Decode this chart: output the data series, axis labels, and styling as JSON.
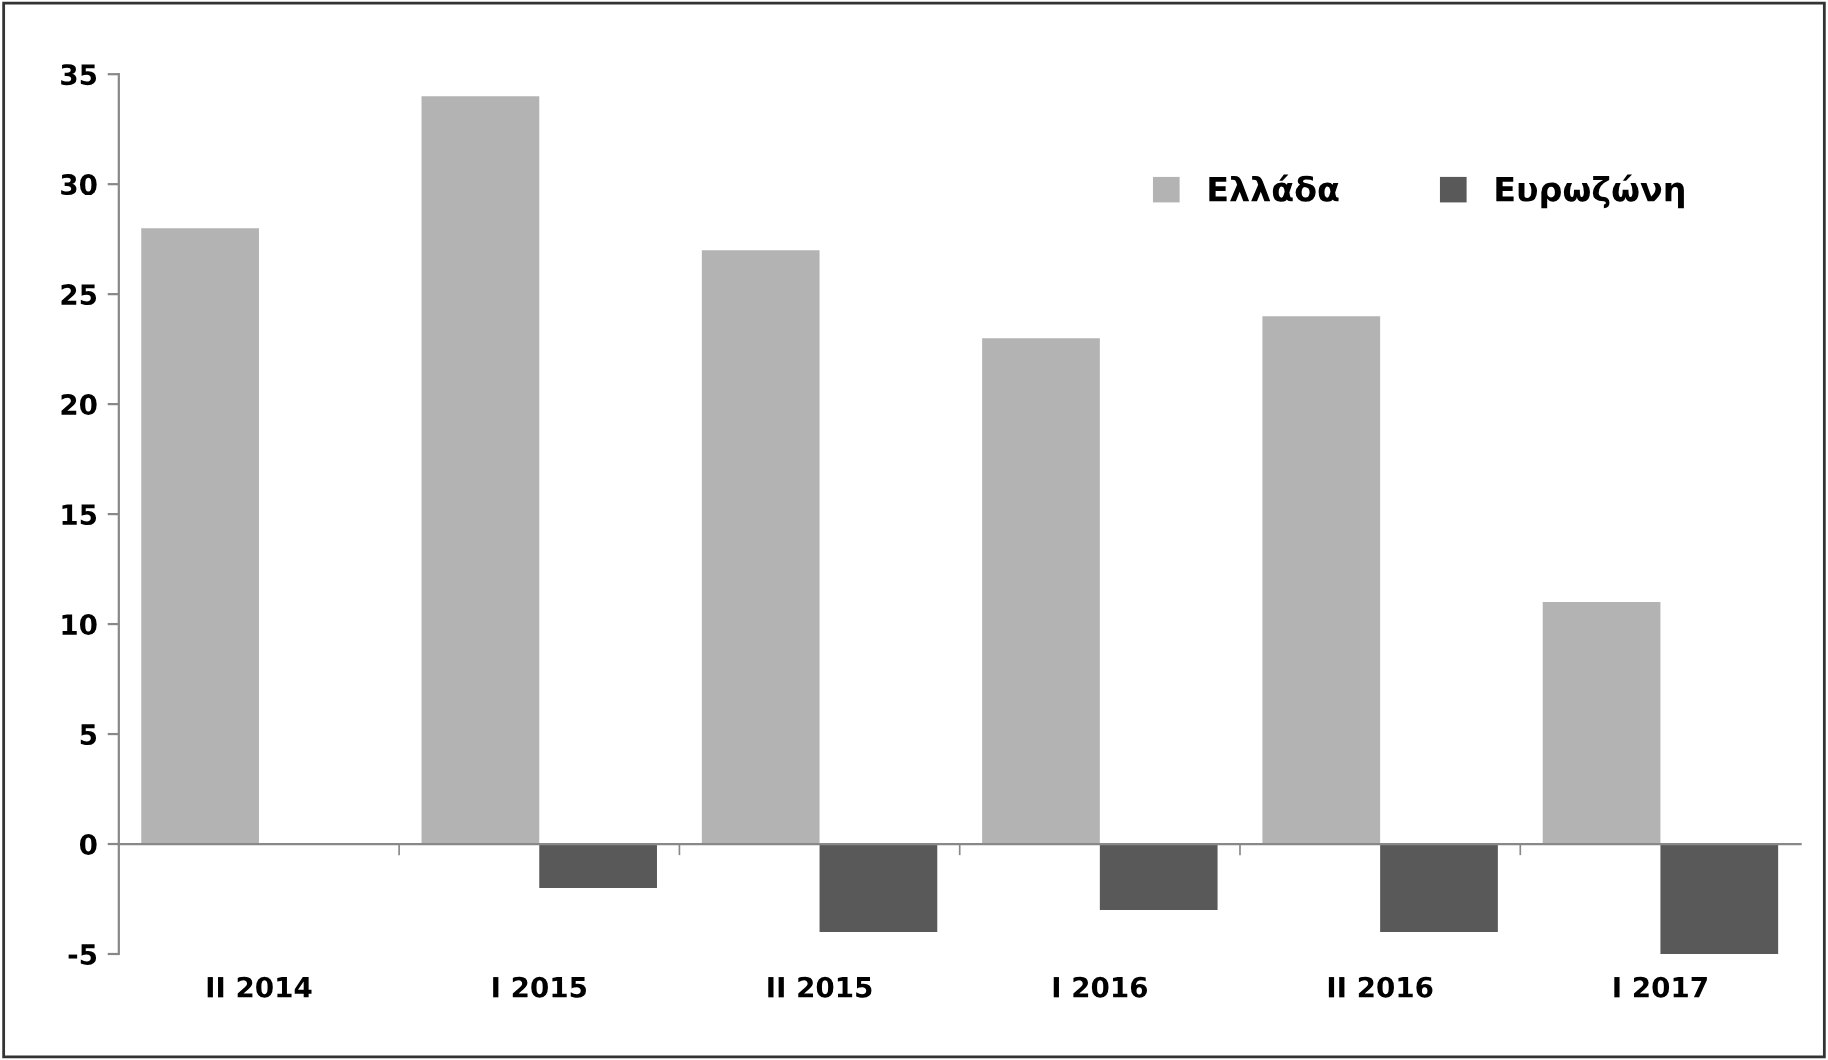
{
  "chart_data": {
    "type": "bar",
    "categories": [
      "II 2014",
      "I 2015",
      "II 2015",
      "I 2016",
      "II 2016",
      "I 2017"
    ],
    "series": [
      {
        "name": "Ελλάδα",
        "color": "#b3b3b3",
        "values": [
          28,
          34,
          27,
          23,
          24,
          11
        ]
      },
      {
        "name": "Ευρωζώνη",
        "color": "#595959",
        "values": [
          null,
          -2,
          -4,
          -3,
          -4,
          -5
        ]
      }
    ],
    "ylim": [
      -5,
      35
    ],
    "yticks": [
      -5,
      0,
      5,
      10,
      15,
      20,
      25,
      30,
      35
    ],
    "legend": "top right"
  }
}
